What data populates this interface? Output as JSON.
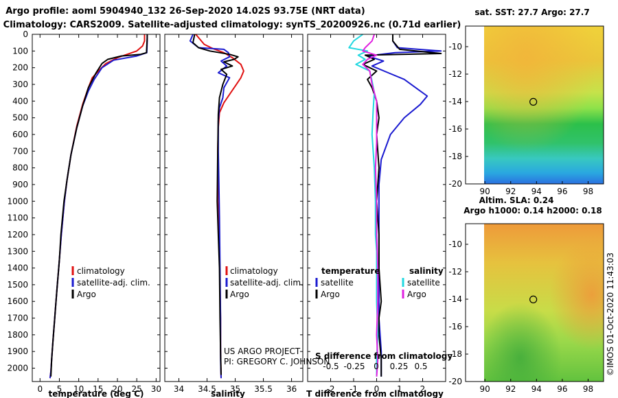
{
  "header": {
    "line1": "Argo profile: aoml 5904940_132 26-Sep-2020 14.02S 93.75E (NRT data)",
    "line2": "Climatology: CARS2009. Satellite-adjusted climatology: synTS_20200926.nc (0.71d earlier)"
  },
  "colors": {
    "climatology": "#e01010",
    "satellite": "#1a1ad0",
    "argo": "#000000",
    "sal_satellite": "#22d8e0",
    "sal_argo": "#e020e0"
  },
  "chart_data": [
    {
      "id": "temperature",
      "type": "line",
      "xlabel": "temperature (deg C)",
      "xlim": [
        -2,
        31
      ],
      "xticks": [
        0,
        5,
        10,
        15,
        20,
        25,
        30
      ],
      "ylim": [
        0,
        2080
      ],
      "yticks": [
        0,
        100,
        200,
        300,
        400,
        500,
        600,
        700,
        800,
        900,
        1000,
        1100,
        1200,
        1300,
        1400,
        1500,
        1600,
        1700,
        1800,
        1900,
        2000
      ],
      "legend": [
        "climatology",
        "satellite-adj. clim.",
        "Argo"
      ],
      "series": [
        {
          "name": "climatology",
          "color_key": "climatology",
          "x": [
            27.0,
            27.0,
            26.5,
            25.0,
            20.0,
            17.0,
            15.5,
            13.5,
            12.5,
            11.0,
            9.5,
            8.0,
            7.0,
            6.3,
            5.5,
            5.0,
            4.3,
            3.8,
            3.3,
            3.0,
            2.8,
            2.6
          ],
          "y": [
            0,
            40,
            70,
            100,
            140,
            175,
            210,
            260,
            320,
            420,
            550,
            720,
            870,
            1000,
            1200,
            1350,
            1550,
            1700,
            1850,
            1950,
            2020,
            2060
          ]
        },
        {
          "name": "satellite-adj. clim.",
          "color_key": "satellite",
          "x": [
            27.7,
            27.7,
            27.6,
            25.0,
            19.0,
            16.0,
            14.0,
            12.5,
            11.0,
            9.5,
            8.0,
            7.0,
            6.3,
            5.5,
            5.0,
            4.3,
            3.8,
            3.3,
            3.0,
            2.8,
            2.6
          ],
          "y": [
            0,
            40,
            110,
            130,
            155,
            200,
            270,
            340,
            430,
            560,
            720,
            870,
            1000,
            1200,
            1350,
            1550,
            1700,
            1850,
            1950,
            2020,
            2060
          ]
        },
        {
          "name": "Argo",
          "color_key": "argo",
          "x": [
            27.7,
            27.7,
            27.5,
            26.0,
            21.0,
            17.5,
            16.0,
            14.5,
            12.5,
            11.0,
            9.5,
            8.0,
            7.0,
            6.2,
            5.4,
            5.0,
            4.3,
            3.8,
            3.3,
            3.0,
            2.8
          ],
          "y": [
            0,
            20,
            110,
            120,
            130,
            150,
            175,
            230,
            320,
            430,
            560,
            720,
            870,
            1000,
            1200,
            1350,
            1550,
            1700,
            1850,
            1950,
            2050
          ]
        }
      ]
    },
    {
      "id": "salinity",
      "type": "line",
      "xlabel": "salinity",
      "xlim": [
        33.75,
        36.2
      ],
      "xticks": [
        34,
        34.5,
        35,
        35.5,
        36
      ],
      "xtick_labels": [
        "34",
        "34.5",
        "35",
        "35.5",
        "36"
      ],
      "ylim": [
        0,
        2080
      ],
      "legend": [
        "climatology",
        "satellite-adj. clim.",
        "Argo"
      ],
      "annotations": [
        "US ARGO PROJECT",
        "PI: GREGORY C. JOHNSON"
      ],
      "series": [
        {
          "name": "climatology",
          "color_key": "climatology",
          "x": [
            34.3,
            34.45,
            34.6,
            34.8,
            34.95,
            35.1,
            35.15,
            35.1,
            35.0,
            34.9,
            34.8,
            34.72,
            34.7,
            34.69,
            34.7,
            34.71,
            34.72,
            34.73,
            34.74,
            34.74,
            34.75
          ],
          "y": [
            0,
            60,
            85,
            110,
            140,
            180,
            220,
            260,
            310,
            360,
            410,
            470,
            560,
            700,
            900,
            1100,
            1300,
            1500,
            1700,
            1900,
            2060
          ]
        },
        {
          "name": "satellite-adj. clim.",
          "color_key": "satellite",
          "x": [
            34.25,
            34.2,
            34.35,
            34.8,
            34.88,
            34.9,
            34.75,
            34.85,
            34.7,
            34.9,
            34.8,
            34.78,
            34.72,
            34.7,
            34.7,
            34.71,
            34.72,
            34.73,
            34.74,
            34.74,
            34.75
          ],
          "y": [
            0,
            40,
            80,
            90,
            110,
            135,
            160,
            190,
            230,
            260,
            320,
            380,
            440,
            520,
            700,
            900,
            1100,
            1400,
            1700,
            1950,
            2060
          ]
        },
        {
          "name": "Argo",
          "color_key": "argo",
          "x": [
            34.28,
            34.25,
            34.35,
            34.55,
            34.9,
            35.05,
            34.98,
            34.8,
            34.95,
            34.75,
            34.85,
            34.78,
            34.72,
            34.7,
            34.69,
            34.68,
            34.7,
            34.72,
            34.73,
            34.74,
            34.75
          ],
          "y": [
            0,
            50,
            80,
            100,
            120,
            135,
            150,
            165,
            190,
            210,
            240,
            300,
            380,
            480,
            700,
            1000,
            1200,
            1400,
            1700,
            1900,
            2040
          ]
        }
      ]
    },
    {
      "id": "difference",
      "type": "line",
      "xlabel": "T difference from climatology",
      "xlim": [
        -3,
        3
      ],
      "xticks": [
        -2,
        -1,
        0,
        1,
        2
      ],
      "s_axis_label": "S difference from climatology",
      "s_xticks": [
        "-0.5",
        "-0.25",
        "0",
        "0.25",
        "0.5"
      ],
      "ylim": [
        0,
        2080
      ],
      "legend_headers": [
        "temperature",
        "salinity"
      ],
      "legend_left": [
        "satellite",
        "Argo"
      ],
      "legend_right": [
        "satellite",
        "Argo"
      ],
      "series": [
        {
          "name": "T satellite",
          "color_key": "satellite",
          "x": [
            0.7,
            0.7,
            0.9,
            2.8,
            0.8,
            -0.4,
            0.3,
            -0.2,
            0.5,
            1.2,
            1.8,
            2.2,
            1.9,
            1.2,
            0.6,
            0.2,
            0.1,
            0.1,
            0.1,
            0.1,
            0.1,
            0.2,
            0.2
          ],
          "y": [
            0,
            40,
            80,
            100,
            110,
            130,
            160,
            190,
            230,
            270,
            330,
            370,
            420,
            500,
            600,
            750,
            900,
            1100,
            1300,
            1500,
            1700,
            1900,
            2050
          ]
        },
        {
          "name": "T Argo",
          "color_key": "argo",
          "x": [
            0.7,
            0.7,
            1.0,
            2.8,
            -0.5,
            -0.1,
            -0.6,
            0.0,
            -0.4,
            -0.2,
            0.0,
            0.1,
            0.0,
            0.1,
            0.0,
            0.1,
            0.1,
            0.2,
            0.1,
            0.1,
            0.2,
            0.2
          ],
          "y": [
            0,
            40,
            90,
            115,
            125,
            150,
            180,
            220,
            270,
            320,
            400,
            500,
            600,
            800,
            1000,
            1200,
            1400,
            1600,
            1700,
            1800,
            1950,
            2050
          ]
        },
        {
          "name": "S satellite",
          "color_key": "sal_satellite",
          "x": [
            -0.12,
            -0.2,
            -0.24,
            -0.08,
            -0.16,
            -0.1,
            -0.18,
            -0.06,
            -0.04,
            -0.02,
            -0.03,
            -0.04,
            -0.02,
            -0.01,
            -0.01,
            0.0,
            0.0,
            0.0,
            0.01,
            0.0,
            0.0
          ],
          "y": [
            0,
            40,
            80,
            100,
            125,
            150,
            180,
            220,
            280,
            350,
            450,
            600,
            800,
            1000,
            1200,
            1300,
            1400,
            1600,
            1800,
            1950,
            2050
          ]
        },
        {
          "name": "S Argo",
          "color_key": "sal_argo",
          "x": [
            -0.02,
            -0.04,
            -0.1,
            -0.12,
            0.0,
            -0.08,
            -0.12,
            -0.06,
            -0.04,
            0.0,
            0.0,
            0.0,
            -0.01,
            0.0,
            0.0,
            0.01,
            0.01,
            0.0,
            0.01,
            0.0
          ],
          "y": [
            0,
            40,
            80,
            100,
            125,
            150,
            180,
            220,
            300,
            400,
            500,
            650,
            800,
            1000,
            1200,
            1400,
            1600,
            1800,
            1950,
            2050
          ]
        }
      ]
    },
    {
      "id": "sst_map",
      "type": "heatmap",
      "title": "sat. SST: 27.7 Argo: 27.7",
      "xlim": [
        88.5,
        99.2
      ],
      "xticks": [
        90,
        92,
        94,
        96,
        98
      ],
      "ylim": [
        -20,
        -8.5
      ],
      "yticks": [
        -10,
        -12,
        -14,
        -16,
        -18,
        -20
      ],
      "argo_position": {
        "lon": 93.75,
        "lat": -14.02
      }
    },
    {
      "id": "sla_map",
      "type": "heatmap",
      "title": "Altim. SLA: 0.24",
      "subtitle": "Argo h1000: 0.14 h2000: 0.18",
      "xlim": [
        88.5,
        99.2
      ],
      "xticks": [
        90,
        92,
        94,
        96,
        98
      ],
      "ylim": [
        -20,
        -8.5
      ],
      "yticks": [
        -10,
        -12,
        -14,
        -16,
        -18,
        -20
      ],
      "argo_position": {
        "lon": 93.75,
        "lat": -14.02
      }
    }
  ],
  "footer": {
    "stamp": "©IMOS 01-Oct-2020 11:43:03"
  }
}
